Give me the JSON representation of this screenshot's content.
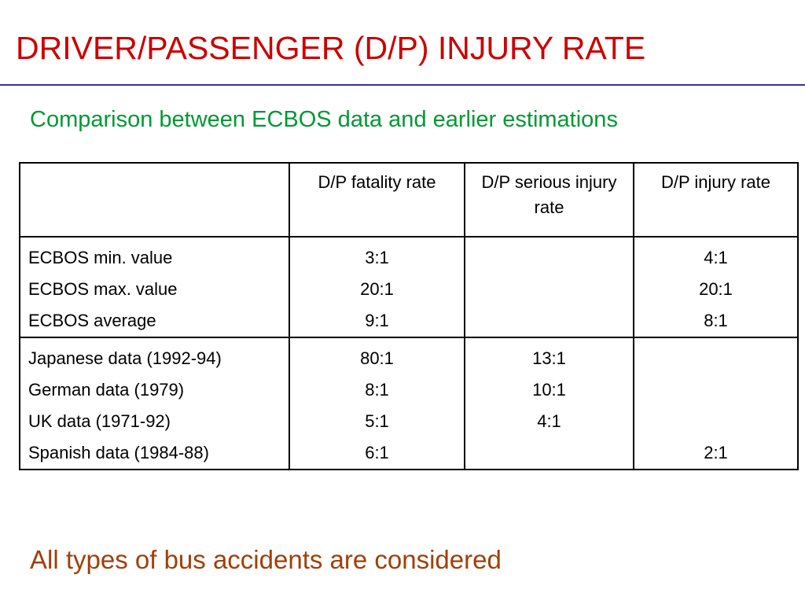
{
  "header": {
    "title": "DRIVER/PASSENGER (D/P) INJURY RATE",
    "subtitle": "Comparison between ECBOS data and earlier estimations"
  },
  "table": {
    "columns": [
      null,
      "D/P fatality rate",
      "D/P serious injury rate",
      "D/P injury rate"
    ],
    "groups": [
      {
        "rows": [
          [
            "ECBOS min. value",
            "3:1",
            null,
            "4:1"
          ],
          [
            "ECBOS max. value",
            "20:1",
            null,
            "20:1"
          ],
          [
            "ECBOS average",
            "9:1",
            null,
            "8:1"
          ]
        ]
      },
      {
        "rows": [
          [
            "Japanese data (1992-94)",
            "80:1",
            "13:1",
            null
          ],
          [
            "German data (1979)",
            "8:1",
            "10:1",
            null
          ],
          [
            "UK data (1971-92)",
            "5:1",
            "4:1",
            null
          ],
          [
            "Spanish data (1984-88)",
            "6:1",
            null,
            "2:1"
          ]
        ]
      }
    ]
  },
  "footer": {
    "note": "All types of bus accidents are considered"
  }
}
